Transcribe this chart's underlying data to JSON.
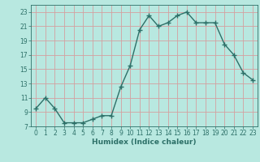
{
  "x": [
    0,
    1,
    2,
    3,
    4,
    5,
    6,
    7,
    8,
    9,
    10,
    11,
    12,
    13,
    14,
    15,
    16,
    17,
    18,
    19,
    20,
    21,
    22,
    23
  ],
  "y": [
    9.5,
    11,
    9.5,
    7.5,
    7.5,
    7.5,
    8.0,
    8.5,
    8.5,
    12.5,
    15.5,
    20.5,
    22.5,
    21.0,
    21.5,
    22.5,
    23.0,
    21.5,
    21.5,
    21.5,
    18.5,
    17.0,
    14.5,
    13.5
  ],
  "line_color": "#2d7068",
  "marker": "+",
  "markersize": 4,
  "markeredgewidth": 1.0,
  "linewidth": 1.0,
  "bg_color": "#b8e8e0",
  "grid_color": "#d4a0a0",
  "tick_color": "#2d7068",
  "label_color": "#2d7068",
  "xlabel": "Humidex (Indice chaleur)",
  "ylim": [
    7,
    24
  ],
  "yticks": [
    7,
    9,
    11,
    13,
    15,
    17,
    19,
    21,
    23
  ],
  "xlim": [
    -0.5,
    23.5
  ],
  "xticks": [
    0,
    1,
    2,
    3,
    4,
    5,
    6,
    7,
    8,
    9,
    10,
    11,
    12,
    13,
    14,
    15,
    16,
    17,
    18,
    19,
    20,
    21,
    22,
    23
  ]
}
